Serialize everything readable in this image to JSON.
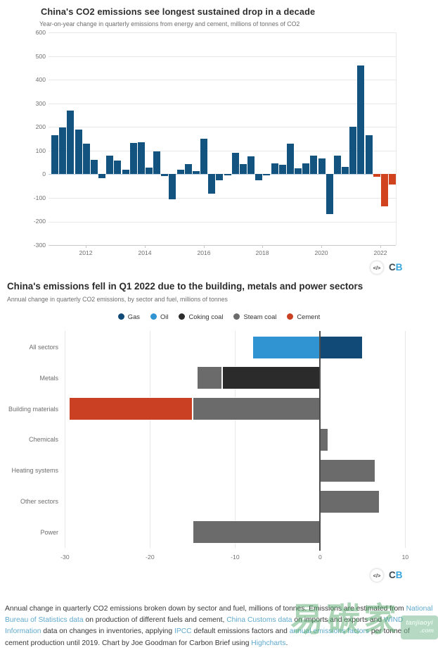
{
  "chart_data": [
    {
      "type": "bar",
      "title": "China's CO2 emissions see longest sustained drop in a decade",
      "subtitle": "Year-on-year change in quarterly emissions from energy and cement, millions of tonnes of CO2",
      "categories": [
        "2011 Q2",
        "2011 Q3",
        "2011 Q4",
        "2012 Q1",
        "2012 Q2",
        "2012 Q3",
        "2012 Q4",
        "2013 Q1",
        "2013 Q2",
        "2013 Q3",
        "2013 Q4",
        "2014 Q1",
        "2014 Q2",
        "2014 Q3",
        "2014 Q4",
        "2015 Q1",
        "2015 Q2",
        "2015 Q3",
        "2015 Q4",
        "2016 Q1",
        "2016 Q2",
        "2016 Q3",
        "2016 Q4",
        "2017 Q1",
        "2017 Q2",
        "2017 Q3",
        "2017 Q4",
        "2018 Q1",
        "2018 Q2",
        "2018 Q3",
        "2018 Q4",
        "2019 Q1",
        "2019 Q2",
        "2019 Q3",
        "2019 Q4",
        "2020 Q1",
        "2020 Q2",
        "2020 Q3",
        "2020 Q4",
        "2021 Q1",
        "2021 Q2",
        "2021 Q3",
        "2021 Q4",
        "2022 Q1"
      ],
      "values": [
        165,
        197,
        270,
        190,
        130,
        62,
        -18,
        78,
        57,
        20,
        133,
        136,
        28,
        96,
        -8,
        -105,
        20,
        42,
        12,
        151,
        -82,
        -26,
        -3,
        91,
        43,
        77,
        -26,
        -3,
        45,
        41,
        130,
        24,
        45,
        80,
        68,
        -170,
        78,
        30,
        200,
        460,
        165,
        -10,
        -135,
        -43
      ],
      "bar_color": "#13537f",
      "highlight_color": "#d1431f",
      "highlight_from_index": 41,
      "ylim": [
        -300,
        600
      ],
      "ytick_step": 100,
      "xticks": [
        "2012",
        "2014",
        "2016",
        "2018",
        "2020",
        "2022"
      ],
      "grid": true,
      "legend_position": "none"
    },
    {
      "type": "bar-horizontal-stacked",
      "title": "China's emissions fell in Q1 2022 due to the building, metals and power sectors",
      "subtitle": "Annual change in quarterly CO2 emissions, by sector and fuel, millions of tonnes",
      "categories": [
        "All sectors",
        "Metals",
        "Building materials",
        "Chemicals",
        "Heating systems",
        "Other sectors",
        "Power"
      ],
      "series": [
        {
          "name": "Gas",
          "color": "#114a77",
          "values": [
            5,
            0,
            0,
            0,
            0,
            0,
            0
          ]
        },
        {
          "name": "Oil",
          "color": "#3093d2",
          "values": [
            -8,
            0,
            0,
            0,
            0,
            0,
            0
          ]
        },
        {
          "name": "Coking coal",
          "color": "#2b2b2b",
          "values": [
            0,
            -11.5,
            0,
            0,
            0,
            0,
            0
          ]
        },
        {
          "name": "Steam coal",
          "color": "#6b6b6b",
          "values": [
            0,
            -3,
            -15,
            1,
            6.5,
            7,
            -15
          ]
        },
        {
          "name": "Cement",
          "color": "#c94122",
          "values": [
            0,
            0,
            -14.5,
            0,
            0,
            0,
            0
          ]
        }
      ],
      "xlim": [
        -30,
        10
      ],
      "xticks": [
        -30,
        -20,
        -10,
        0,
        10
      ],
      "grid": true,
      "legend_position": "top-center"
    }
  ],
  "embed": {
    "icon": "</>"
  },
  "logo": {
    "c": "C",
    "b": "B"
  },
  "footer": {
    "segments": [
      {
        "t": "Annual change in quarterly CO2 emissions broken down by sector and fuel, millions of tonnes. Emissions are estimated from ",
        "link": false
      },
      {
        "t": "National Bureau of Statistics data",
        "link": true
      },
      {
        "t": " on production of different fuels and cement, ",
        "link": false
      },
      {
        "t": "China Customs data",
        "link": true
      },
      {
        "t": " on imports and exports and ",
        "link": false
      },
      {
        "t": "WIND Information",
        "link": true
      },
      {
        "t": " data on changes in inventories, applying ",
        "link": false
      },
      {
        "t": "IPCC",
        "link": true
      },
      {
        "t": " default emissions factors and ",
        "link": false
      },
      {
        "t": "annual emissions factors",
        "link": true
      },
      {
        "t": " per tonne of cement production until 2019. Chart by Joe Goodman for Carbon Brief using ",
        "link": false
      },
      {
        "t": "Highcharts",
        "link": true
      },
      {
        "t": ".",
        "link": false
      }
    ]
  },
  "watermark": {
    "text": "易碳家",
    "badge_line1": "tanjiaoyi",
    "badge_line2": ".com"
  },
  "colors": {
    "brand_blue": "#38a5dc",
    "link_blue": "#5fa8cc"
  }
}
